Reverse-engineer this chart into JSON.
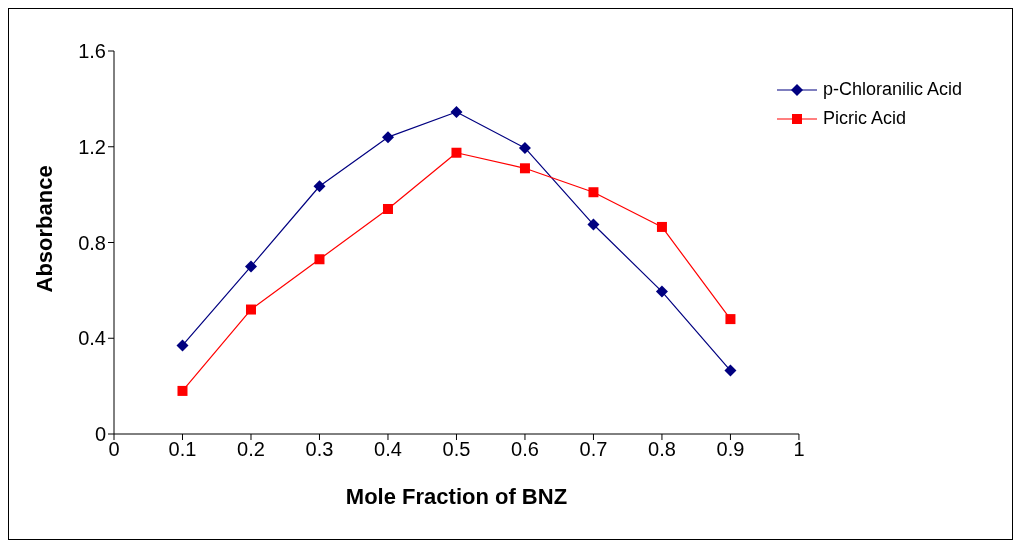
{
  "chart_data": {
    "type": "line",
    "xlabel": "Mole Fraction of BNZ",
    "ylabel": "Absorbance",
    "x": [
      0.1,
      0.2,
      0.3,
      0.4,
      0.5,
      0.6,
      0.7,
      0.8,
      0.9
    ],
    "series": [
      {
        "name": "p-Chloranilic Acid",
        "color": "#000080",
        "marker": "diamond",
        "values": [
          0.37,
          0.7,
          1.035,
          1.24,
          1.345,
          1.195,
          0.875,
          0.595,
          0.265
        ]
      },
      {
        "name": "Picric Acid",
        "color": "#ff0000",
        "marker": "square",
        "values": [
          0.18,
          0.52,
          0.73,
          0.94,
          1.175,
          1.11,
          1.01,
          0.865,
          0.48
        ]
      }
    ],
    "xlim": [
      0,
      1
    ],
    "xticks": [
      0,
      0.1,
      0.2,
      0.3,
      0.4,
      0.5,
      0.6,
      0.7,
      0.8,
      0.9,
      1
    ],
    "ylim": [
      0,
      1.6
    ],
    "yticks": [
      0,
      0.4,
      0.8,
      1.2,
      1.6
    ],
    "grid": false,
    "legend": "top right",
    "line_style": "solid"
  }
}
